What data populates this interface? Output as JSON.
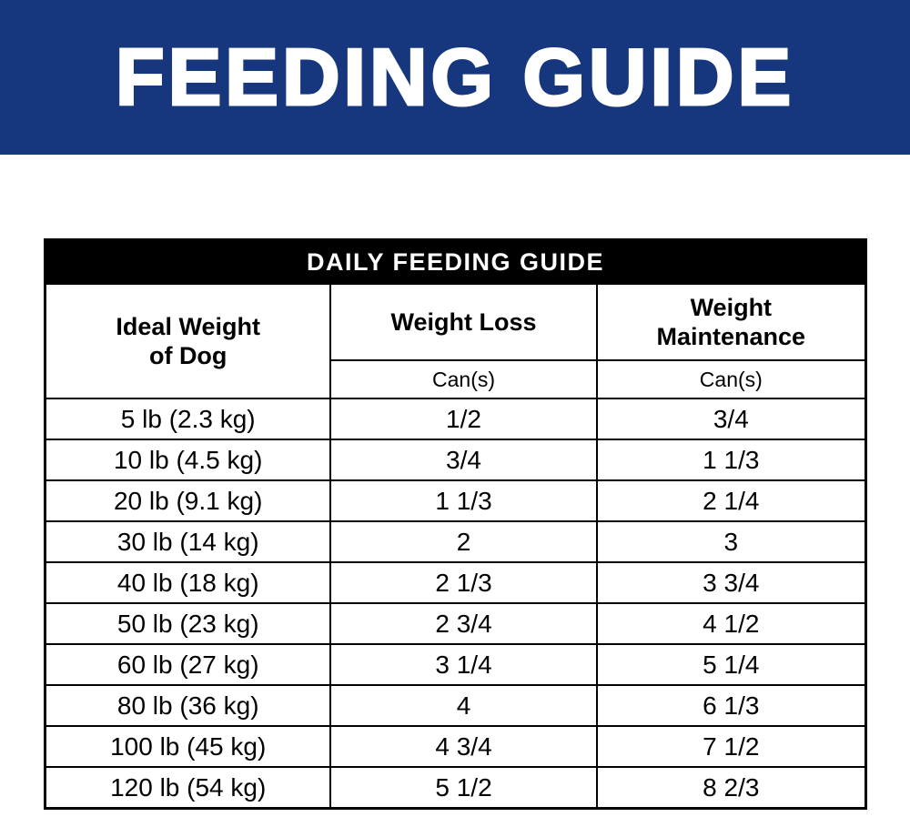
{
  "banner": {
    "title": "FEEDING GUIDE",
    "bg_color": "#16377d",
    "text_color": "#ffffff"
  },
  "table": {
    "title": "DAILY FEEDING GUIDE",
    "title_bg_color": "#000000",
    "columns": [
      {
        "label": "Ideal Weight\nof Dog"
      },
      {
        "label": "Weight Loss",
        "sub": "Can(s)"
      },
      {
        "label": "Weight\nMaintenance",
        "sub": "Can(s)"
      }
    ],
    "rows": [
      {
        "weight": "5 lb (2.3 kg)",
        "loss": "1/2",
        "maintenance": "3/4"
      },
      {
        "weight": "10 lb (4.5 kg)",
        "loss": "3/4",
        "maintenance": "1 1/3"
      },
      {
        "weight": "20 lb (9.1 kg)",
        "loss": "1 1/3",
        "maintenance": "2 1/4"
      },
      {
        "weight": "30 lb (14 kg)",
        "loss": "2",
        "maintenance": "3"
      },
      {
        "weight": "40 lb (18 kg)",
        "loss": "2 1/3",
        "maintenance": "3 3/4"
      },
      {
        "weight": "50 lb (23 kg)",
        "loss": "2 3/4",
        "maintenance": "4 1/2"
      },
      {
        "weight": "60 lb (27 kg)",
        "loss": "3 1/4",
        "maintenance": "5 1/4"
      },
      {
        "weight": "80 lb (36 kg)",
        "loss": "4",
        "maintenance": "6 1/3"
      },
      {
        "weight": "100 lb (45 kg)",
        "loss": "4 3/4",
        "maintenance": "7 1/2"
      },
      {
        "weight": "120 lb (54 kg)",
        "loss": "5 1/2",
        "maintenance": "8 2/3"
      }
    ]
  }
}
